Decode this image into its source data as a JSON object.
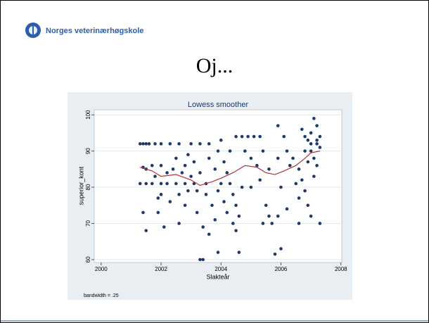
{
  "header": {
    "organization": "Norges veterinærhøgskole"
  },
  "slide": {
    "title": "Oj..."
  },
  "chart_data": {
    "type": "scatter",
    "title": "Lowess smoother",
    "x_label": "Slakteår",
    "y_label": "superior_kont",
    "annotation": "bandwidth = .25",
    "xlim": [
      1999.77,
      2008.03
    ],
    "ylim": [
      59.2,
      101.4
    ],
    "xticks": [
      2000,
      2002,
      2004,
      2006,
      2008
    ],
    "yticks": [
      60,
      70,
      80,
      90,
      100
    ],
    "grid": true,
    "series": [
      {
        "type": "scatter",
        "color": "#1f3a68",
        "x": [
          2001.3,
          2001.4,
          2001.5,
          2001.6,
          2001.8,
          2002.0,
          2002.3,
          2002.6,
          2003.0,
          2003.3,
          2003.6,
          2001.4,
          2001.5,
          2001.7,
          2002.0,
          2002.4,
          2002.8,
          2001.3,
          2001.5,
          2001.7,
          2002.0,
          2002.2,
          2002.5,
          2002.8,
          2003.1,
          2003.5,
          2004.0,
          2004.3,
          2001.4,
          2001.5,
          2001.9,
          2002.1,
          2002.0,
          2002.3,
          2002.6,
          2002.8,
          2002.9,
          2003.2,
          2003.4,
          2003.6,
          2003.5,
          2003.3,
          2003.4,
          2003.9,
          2004.6,
          2005.8,
          2006.0,
          2002.5,
          2002.9,
          2003.1,
          2003.3,
          2003.6,
          2003.8,
          2003.9,
          2004.0,
          2004.1,
          2004.2,
          2004.3,
          2004.4,
          2004.5,
          2004.4,
          2004.5,
          2004.6,
          2004.7,
          2004.5,
          2004.7,
          2004.9,
          2005.1,
          2005.3,
          2004.8,
          2005.0,
          2005.2,
          2005.4,
          2005.6,
          2005.3,
          2005.0,
          2005.5,
          2005.6,
          2005.7,
          2005.4,
          2005.9,
          2006.1,
          2006.2,
          2005.9,
          2006.0,
          2006.3,
          2006.5,
          2006.6,
          2006.2,
          2005.9,
          2006.4,
          2006.6,
          2006.7,
          2006.8,
          2006.9,
          2007.0,
          2007.1,
          2007.2,
          2007.2,
          2007.0,
          2006.8,
          2006.9,
          2007.1,
          2007.2,
          2006.7,
          2006.8,
          2006.9,
          2007.0,
          2007.1,
          2007.3,
          2007.3,
          2006.6,
          2007.2,
          2007.3,
          2007.0,
          2003.0,
          2003.2,
          2002.7,
          2002.2,
          2001.8,
          2001.9,
          2002.6,
          2003.7,
          2003.8,
          2003.9,
          2004.1,
          2004.2
        ],
        "values": [
          92,
          92,
          92,
          92,
          92,
          92,
          92,
          92,
          92,
          92,
          92,
          85.5,
          85,
          86,
          86,
          85,
          86,
          81,
          81,
          81,
          81,
          81,
          81,
          81,
          81,
          81,
          81,
          81,
          73,
          68,
          73,
          69,
          78,
          76,
          70,
          75,
          79,
          73,
          69,
          67,
          78,
          60,
          60,
          62,
          62,
          61.5,
          63,
          88,
          89,
          87,
          84,
          88,
          85,
          90,
          93,
          87,
          84,
          90,
          78,
          75,
          70,
          68,
          72,
          80,
          94,
          94,
          94,
          94,
          94,
          90,
          88,
          86,
          90,
          85,
          82,
          80,
          75,
          72,
          70,
          70,
          97,
          94,
          90,
          88,
          80,
          86,
          81,
          77,
          74,
          72,
          88,
          85,
          96,
          94,
          93,
          95,
          99,
          97,
          93,
          90,
          90,
          87,
          88,
          86,
          82,
          79,
          75,
          72,
          83,
          91,
          70,
          70,
          92,
          94,
          92,
          83,
          79,
          84,
          84,
          83,
          77,
          78,
          75,
          71,
          79,
          76,
          73
        ]
      },
      {
        "type": "line",
        "color": "#b0303a",
        "x": [
          2001.3,
          2001.7,
          2002.0,
          2002.5,
          2003.0,
          2003.3,
          2003.7,
          2004.0,
          2004.4,
          2004.8,
          2005.2,
          2005.5,
          2005.8,
          2006.1,
          2006.5,
          2006.8,
          2007.0,
          2007.3
        ],
        "values": [
          85.5,
          84.5,
          83,
          83.5,
          82,
          80.5,
          81.5,
          82.5,
          84,
          86,
          85.5,
          84,
          83.5,
          84.5,
          86,
          88,
          89.5,
          90
        ]
      }
    ]
  }
}
